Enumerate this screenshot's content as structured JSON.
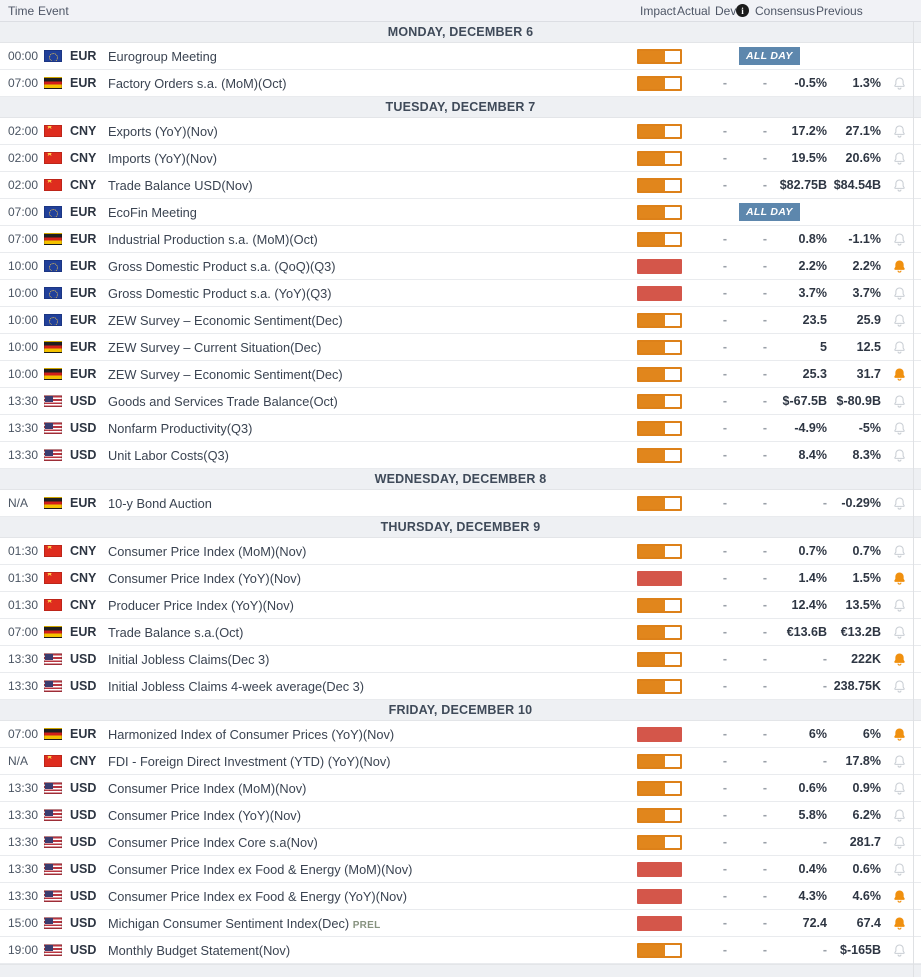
{
  "columns": {
    "time": "Time",
    "event": "Event",
    "impact": "Impact",
    "actual": "Actual",
    "dev": "Dev",
    "dev_info_icon": "i",
    "consensus": "Consensus",
    "previous": "Previous"
  },
  "badges": {
    "all_day": "ALL DAY",
    "prel": "PREL"
  },
  "colors": {
    "impact_medium": "#e1861c",
    "impact_high": "#d4564a",
    "bell_active": "#f0900f",
    "bell_inactive": "#c9ced4",
    "all_day_badge_bg": "#5d87ad",
    "day_header_bg": "#eef0f3",
    "table_header_bg": "#f1f2f6"
  },
  "days": [
    {
      "label": "MONDAY, DECEMBER 6",
      "events": [
        {
          "time": "00:00",
          "flag": "eu",
          "currency": "EUR",
          "name": "Eurogroup Meeting",
          "impact": "medium",
          "all_day": true,
          "actual": "",
          "dev": "",
          "consensus": "",
          "previous": "",
          "alert": false,
          "show_bell": false
        },
        {
          "time": "07:00",
          "flag": "de",
          "currency": "EUR",
          "name": "Factory Orders s.a. (MoM)(Oct)",
          "impact": "medium",
          "all_day": false,
          "actual": "-",
          "dev": "-",
          "consensus": "-0.5%",
          "previous": "1.3%",
          "alert": false,
          "show_bell": true
        }
      ]
    },
    {
      "label": "TUESDAY, DECEMBER 7",
      "events": [
        {
          "time": "02:00",
          "flag": "cn",
          "currency": "CNY",
          "name": "Exports (YoY)(Nov)",
          "impact": "medium",
          "all_day": false,
          "actual": "-",
          "dev": "-",
          "consensus": "17.2%",
          "previous": "27.1%",
          "alert": false,
          "show_bell": true
        },
        {
          "time": "02:00",
          "flag": "cn",
          "currency": "CNY",
          "name": "Imports (YoY)(Nov)",
          "impact": "medium",
          "all_day": false,
          "actual": "-",
          "dev": "-",
          "consensus": "19.5%",
          "previous": "20.6%",
          "alert": false,
          "show_bell": true
        },
        {
          "time": "02:00",
          "flag": "cn",
          "currency": "CNY",
          "name": "Trade Balance USD(Nov)",
          "impact": "medium",
          "all_day": false,
          "actual": "-",
          "dev": "-",
          "consensus": "$82.75B",
          "previous": "$84.54B",
          "alert": false,
          "show_bell": true
        },
        {
          "time": "07:00",
          "flag": "eu",
          "currency": "EUR",
          "name": "EcoFin Meeting",
          "impact": "medium",
          "all_day": true,
          "actual": "",
          "dev": "",
          "consensus": "",
          "previous": "",
          "alert": false,
          "show_bell": false
        },
        {
          "time": "07:00",
          "flag": "de",
          "currency": "EUR",
          "name": "Industrial Production s.a. (MoM)(Oct)",
          "impact": "medium",
          "all_day": false,
          "actual": "-",
          "dev": "-",
          "consensus": "0.8%",
          "previous": "-1.1%",
          "alert": false,
          "show_bell": true
        },
        {
          "time": "10:00",
          "flag": "eu",
          "currency": "EUR",
          "name": "Gross Domestic Product s.a. (QoQ)(Q3)",
          "impact": "high",
          "all_day": false,
          "actual": "-",
          "dev": "-",
          "consensus": "2.2%",
          "previous": "2.2%",
          "alert": true,
          "show_bell": true
        },
        {
          "time": "10:00",
          "flag": "eu",
          "currency": "EUR",
          "name": "Gross Domestic Product s.a. (YoY)(Q3)",
          "impact": "high",
          "all_day": false,
          "actual": "-",
          "dev": "-",
          "consensus": "3.7%",
          "previous": "3.7%",
          "alert": false,
          "show_bell": true
        },
        {
          "time": "10:00",
          "flag": "eu",
          "currency": "EUR",
          "name": "ZEW Survey – Economic Sentiment(Dec)",
          "impact": "medium",
          "all_day": false,
          "actual": "-",
          "dev": "-",
          "consensus": "23.5",
          "previous": "25.9",
          "alert": false,
          "show_bell": true
        },
        {
          "time": "10:00",
          "flag": "de",
          "currency": "EUR",
          "name": "ZEW Survey – Current Situation(Dec)",
          "impact": "medium",
          "all_day": false,
          "actual": "-",
          "dev": "-",
          "consensus": "5",
          "previous": "12.5",
          "alert": false,
          "show_bell": true
        },
        {
          "time": "10:00",
          "flag": "de",
          "currency": "EUR",
          "name": "ZEW Survey – Economic Sentiment(Dec)",
          "impact": "medium",
          "all_day": false,
          "actual": "-",
          "dev": "-",
          "consensus": "25.3",
          "previous": "31.7",
          "alert": true,
          "show_bell": true
        },
        {
          "time": "13:30",
          "flag": "us",
          "currency": "USD",
          "name": "Goods and Services Trade Balance(Oct)",
          "impact": "medium",
          "all_day": false,
          "actual": "-",
          "dev": "-",
          "consensus": "$-67.5B",
          "previous": "$-80.9B",
          "alert": false,
          "show_bell": true
        },
        {
          "time": "13:30",
          "flag": "us",
          "currency": "USD",
          "name": "Nonfarm Productivity(Q3)",
          "impact": "medium",
          "all_day": false,
          "actual": "-",
          "dev": "-",
          "consensus": "-4.9%",
          "previous": "-5%",
          "alert": false,
          "show_bell": true
        },
        {
          "time": "13:30",
          "flag": "us",
          "currency": "USD",
          "name": "Unit Labor Costs(Q3)",
          "impact": "medium",
          "all_day": false,
          "actual": "-",
          "dev": "-",
          "consensus": "8.4%",
          "previous": "8.3%",
          "alert": false,
          "show_bell": true
        }
      ]
    },
    {
      "label": "WEDNESDAY, DECEMBER 8",
      "events": [
        {
          "time": "N/A",
          "flag": "de",
          "currency": "EUR",
          "name": "10-y Bond Auction",
          "impact": "medium",
          "all_day": false,
          "actual": "-",
          "dev": "-",
          "consensus": "-",
          "previous": "-0.29%",
          "alert": false,
          "show_bell": true
        }
      ]
    },
    {
      "label": "THURSDAY, DECEMBER 9",
      "events": [
        {
          "time": "01:30",
          "flag": "cn",
          "currency": "CNY",
          "name": "Consumer Price Index (MoM)(Nov)",
          "impact": "medium",
          "all_day": false,
          "actual": "-",
          "dev": "-",
          "consensus": "0.7%",
          "previous": "0.7%",
          "alert": false,
          "show_bell": true
        },
        {
          "time": "01:30",
          "flag": "cn",
          "currency": "CNY",
          "name": "Consumer Price Index (YoY)(Nov)",
          "impact": "high",
          "all_day": false,
          "actual": "-",
          "dev": "-",
          "consensus": "1.4%",
          "previous": "1.5%",
          "alert": true,
          "show_bell": true
        },
        {
          "time": "01:30",
          "flag": "cn",
          "currency": "CNY",
          "name": "Producer Price Index (YoY)(Nov)",
          "impact": "medium",
          "all_day": false,
          "actual": "-",
          "dev": "-",
          "consensus": "12.4%",
          "previous": "13.5%",
          "alert": false,
          "show_bell": true
        },
        {
          "time": "07:00",
          "flag": "de",
          "currency": "EUR",
          "name": "Trade Balance s.a.(Oct)",
          "impact": "medium",
          "all_day": false,
          "actual": "-",
          "dev": "-",
          "consensus": "€13.6B",
          "previous": "€13.2B",
          "alert": false,
          "show_bell": true
        },
        {
          "time": "13:30",
          "flag": "us",
          "currency": "USD",
          "name": "Initial Jobless Claims(Dec 3)",
          "impact": "medium",
          "all_day": false,
          "actual": "-",
          "dev": "-",
          "consensus": "-",
          "previous": "222K",
          "alert": true,
          "show_bell": true
        },
        {
          "time": "13:30",
          "flag": "us",
          "currency": "USD",
          "name": "Initial Jobless Claims 4-week average(Dec 3)",
          "impact": "medium",
          "all_day": false,
          "actual": "-",
          "dev": "-",
          "consensus": "-",
          "previous": "238.75K",
          "alert": false,
          "show_bell": true
        }
      ]
    },
    {
      "label": "FRIDAY, DECEMBER 10",
      "events": [
        {
          "time": "07:00",
          "flag": "de",
          "currency": "EUR",
          "name": "Harmonized Index of Consumer Prices (YoY)(Nov)",
          "impact": "high",
          "all_day": false,
          "actual": "-",
          "dev": "-",
          "consensus": "6%",
          "previous": "6%",
          "alert": true,
          "show_bell": true
        },
        {
          "time": "N/A",
          "flag": "cn",
          "currency": "CNY",
          "name": "FDI - Foreign Direct Investment (YTD) (YoY)(Nov)",
          "impact": "medium",
          "all_day": false,
          "actual": "-",
          "dev": "-",
          "consensus": "-",
          "previous": "17.8%",
          "alert": false,
          "show_bell": true
        },
        {
          "time": "13:30",
          "flag": "us",
          "currency": "USD",
          "name": "Consumer Price Index (MoM)(Nov)",
          "impact": "medium",
          "all_day": false,
          "actual": "-",
          "dev": "-",
          "consensus": "0.6%",
          "previous": "0.9%",
          "alert": false,
          "show_bell": true
        },
        {
          "time": "13:30",
          "flag": "us",
          "currency": "USD",
          "name": "Consumer Price Index (YoY)(Nov)",
          "impact": "medium",
          "all_day": false,
          "actual": "-",
          "dev": "-",
          "consensus": "5.8%",
          "previous": "6.2%",
          "alert": false,
          "show_bell": true
        },
        {
          "time": "13:30",
          "flag": "us",
          "currency": "USD",
          "name": "Consumer Price Index Core s.a(Nov)",
          "impact": "medium",
          "all_day": false,
          "actual": "-",
          "dev": "-",
          "consensus": "-",
          "previous": "281.7",
          "alert": false,
          "show_bell": true
        },
        {
          "time": "13:30",
          "flag": "us",
          "currency": "USD",
          "name": "Consumer Price Index ex Food & Energy (MoM)(Nov)",
          "impact": "high",
          "all_day": false,
          "actual": "-",
          "dev": "-",
          "consensus": "0.4%",
          "previous": "0.6%",
          "alert": false,
          "show_bell": true
        },
        {
          "time": "13:30",
          "flag": "us",
          "currency": "USD",
          "name": "Consumer Price Index ex Food & Energy (YoY)(Nov)",
          "impact": "high",
          "all_day": false,
          "actual": "-",
          "dev": "-",
          "consensus": "4.3%",
          "previous": "4.6%",
          "alert": true,
          "show_bell": true
        },
        {
          "time": "15:00",
          "flag": "us",
          "currency": "USD",
          "name": "Michigan Consumer Sentiment Index(Dec)",
          "suffix": "PREL",
          "impact": "high",
          "all_day": false,
          "actual": "-",
          "dev": "-",
          "consensus": "72.4",
          "previous": "67.4",
          "alert": true,
          "show_bell": true
        },
        {
          "time": "19:00",
          "flag": "us",
          "currency": "USD",
          "name": "Monthly Budget Statement(Nov)",
          "impact": "medium",
          "all_day": false,
          "actual": "-",
          "dev": "-",
          "consensus": "-",
          "previous": "$-165B",
          "alert": false,
          "show_bell": true
        }
      ]
    }
  ]
}
